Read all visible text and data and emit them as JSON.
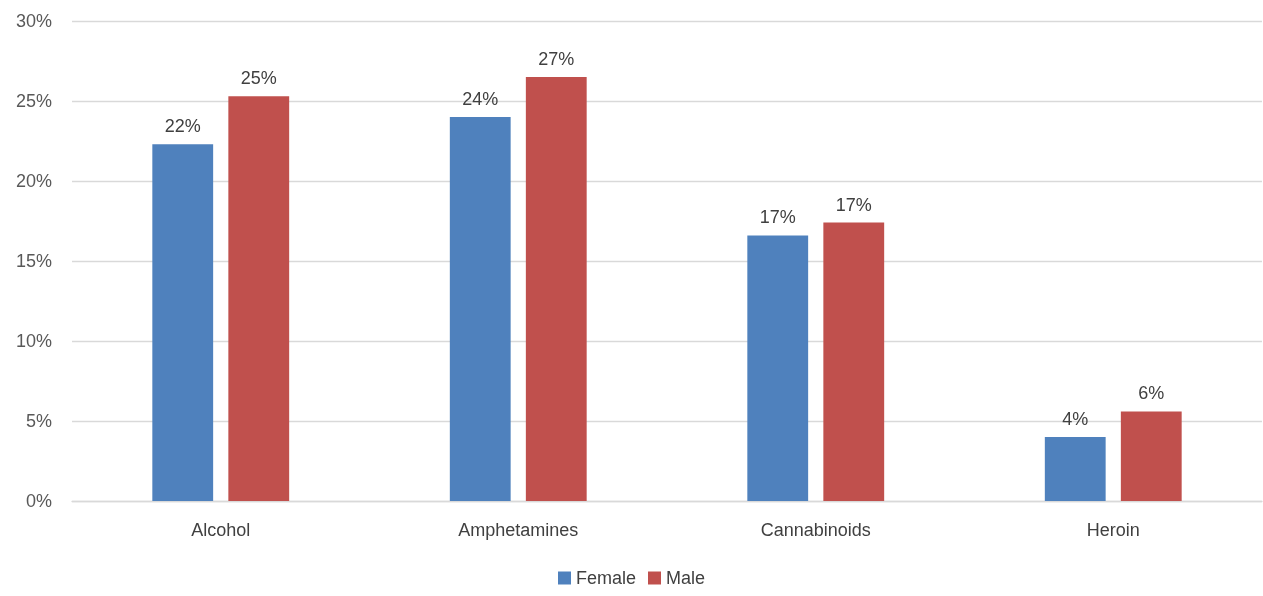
{
  "chart_data": {
    "type": "bar",
    "categories": [
      "Alcohol",
      "Amphetamines",
      "Cannabinoids",
      "Heroin"
    ],
    "series": [
      {
        "name": "Female",
        "color": "#4f81bd",
        "values": [
          22.3,
          24.0,
          16.6,
          4.0
        ],
        "value_labels": [
          "22%",
          "24%",
          "17%",
          "4%"
        ]
      },
      {
        "name": "Male",
        "color": "#c0504d",
        "values": [
          25.3,
          26.5,
          17.4,
          5.6
        ],
        "value_labels": [
          "25%",
          "27%",
          "17%",
          "6%"
        ]
      }
    ],
    "ylim": [
      0,
      30
    ],
    "yticks": [
      {
        "value": 0,
        "label": "0%"
      },
      {
        "value": 5,
        "label": "5%"
      },
      {
        "value": 10,
        "label": "10%"
      },
      {
        "value": 15,
        "label": "15%"
      },
      {
        "value": 20,
        "label": "20%"
      },
      {
        "value": 25,
        "label": "25%"
      },
      {
        "value": 30,
        "label": "30%"
      }
    ],
    "grid": "y",
    "legend": "bottom"
  }
}
